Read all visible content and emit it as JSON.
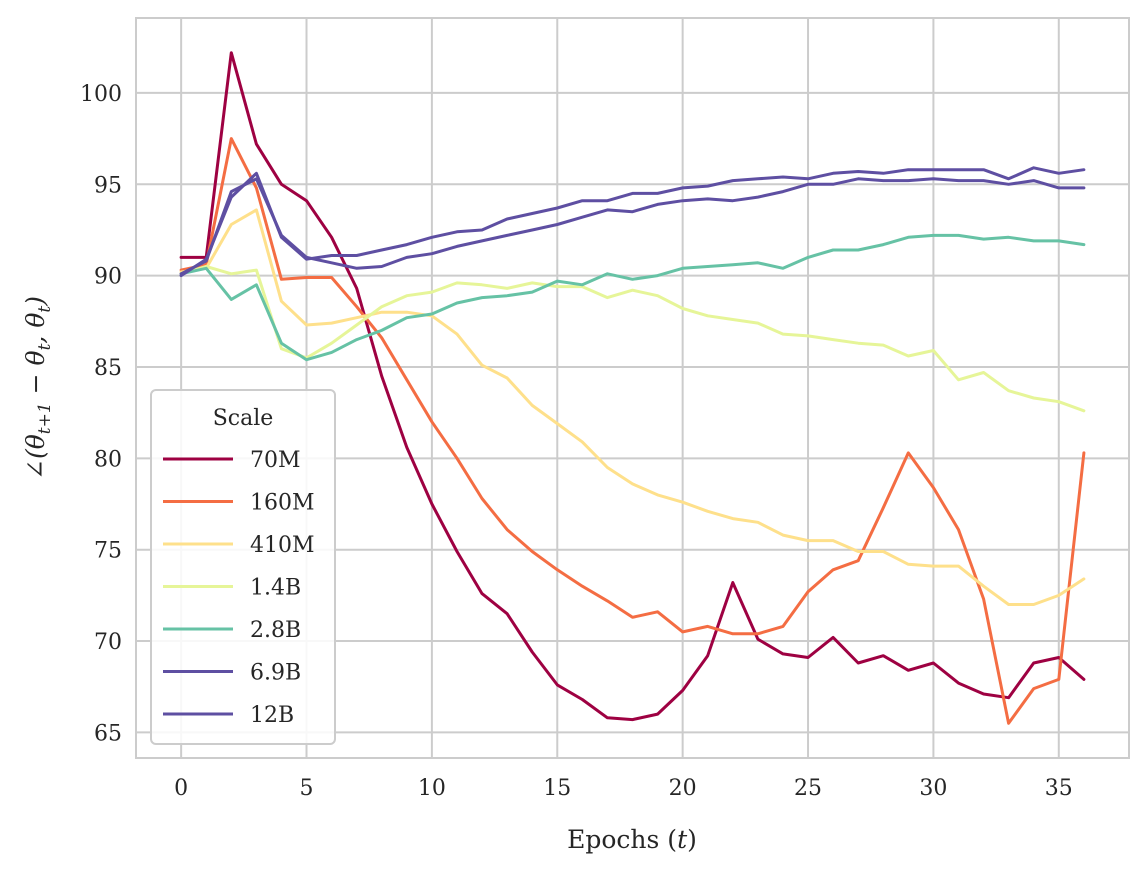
{
  "chart_data": {
    "type": "line",
    "xlabel": "Epochs (t)",
    "ylabel": "∠(θ_{t+1} − θ_t, θ_t)",
    "xlim": [
      -1.8,
      37.8
    ],
    "ylim": [
      63.6,
      104.1
    ],
    "xticks": [
      0,
      5,
      10,
      15,
      20,
      25,
      30,
      35
    ],
    "yticks": [
      65,
      70,
      75,
      80,
      85,
      90,
      95,
      100
    ],
    "grid": true,
    "legend": {
      "title": "Scale",
      "position": "lower-left"
    },
    "x": [
      0,
      1,
      2,
      3,
      4,
      5,
      6,
      7,
      8,
      9,
      10,
      11,
      12,
      13,
      14,
      15,
      16,
      17,
      18,
      19,
      20,
      21,
      22,
      23,
      24,
      25,
      26,
      27,
      28,
      29,
      30,
      31,
      32,
      33,
      34,
      35,
      36
    ],
    "series": [
      {
        "name": "70M",
        "color": "#9e0142",
        "values": [
          91.0,
          91.0,
          102.2,
          97.2,
          95.0,
          94.1,
          92.1,
          89.3,
          84.5,
          80.6,
          77.5,
          74.9,
          72.6,
          71.5,
          69.4,
          67.6,
          66.8,
          65.8,
          65.7,
          66.0,
          67.3,
          69.2,
          73.2,
          70.1,
          69.3,
          69.1,
          70.2,
          68.8,
          69.2,
          68.4,
          68.8,
          67.7,
          67.1,
          66.9,
          68.8,
          69.1,
          67.9
        ]
      },
      {
        "name": "160M",
        "color": "#f46d43",
        "values": [
          90.3,
          90.6,
          97.5,
          94.8,
          89.8,
          89.9,
          89.9,
          88.3,
          86.6,
          84.3,
          82.0,
          80.0,
          77.8,
          76.1,
          74.9,
          73.9,
          73.0,
          72.2,
          71.3,
          71.6,
          70.5,
          70.8,
          70.4,
          70.4,
          70.8,
          72.7,
          73.9,
          74.4,
          77.3,
          80.3,
          78.4,
          76.1,
          72.3,
          65.5,
          67.4,
          67.9,
          80.3
        ]
      },
      {
        "name": "410M",
        "color": "#fee08b",
        "values": [
          90.2,
          90.4,
          92.8,
          93.6,
          88.6,
          87.3,
          87.4,
          87.7,
          88.0,
          88.0,
          87.8,
          86.8,
          85.1,
          84.4,
          82.9,
          81.9,
          80.9,
          79.5,
          78.6,
          78.0,
          77.6,
          77.1,
          76.7,
          76.5,
          75.8,
          75.5,
          75.5,
          74.9,
          74.9,
          74.2,
          74.1,
          74.1,
          73.0,
          72.0,
          72.0,
          72.5,
          73.4
        ]
      },
      {
        "name": "1.4B",
        "color": "#e6f598",
        "values": [
          90.1,
          90.5,
          90.1,
          90.3,
          86.0,
          85.5,
          86.3,
          87.3,
          88.3,
          88.9,
          89.1,
          89.6,
          89.5,
          89.3,
          89.6,
          89.4,
          89.4,
          88.8,
          89.2,
          88.9,
          88.2,
          87.8,
          87.6,
          87.4,
          86.8,
          86.7,
          86.5,
          86.3,
          86.2,
          85.6,
          85.9,
          84.3,
          84.7,
          83.7,
          83.3,
          83.1,
          82.6
        ]
      },
      {
        "name": "2.8B",
        "color": "#66c2a5",
        "values": [
          90.1,
          90.4,
          88.7,
          89.5,
          86.3,
          85.4,
          85.8,
          86.5,
          87.0,
          87.7,
          87.9,
          88.5,
          88.8,
          88.9,
          89.1,
          89.7,
          89.5,
          90.1,
          89.8,
          90.0,
          90.4,
          90.5,
          90.6,
          90.7,
          90.4,
          91.0,
          91.4,
          91.4,
          91.7,
          92.1,
          92.2,
          92.2,
          92.0,
          92.1,
          91.9,
          91.9,
          91.7
        ]
      },
      {
        "name": "6.9B",
        "color": "#5e4fa2",
        "values": [
          90.0,
          90.9,
          94.3,
          95.6,
          92.1,
          90.9,
          91.1,
          91.1,
          91.4,
          91.7,
          92.1,
          92.4,
          92.5,
          93.1,
          93.4,
          93.7,
          94.1,
          94.1,
          94.5,
          94.5,
          94.8,
          94.9,
          95.2,
          95.3,
          95.4,
          95.3,
          95.6,
          95.7,
          95.6,
          95.8,
          95.8,
          95.8,
          95.8,
          95.3,
          95.9,
          95.6,
          95.8
        ]
      },
      {
        "name": "12B",
        "color": "#5e4fa2",
        "values": [
          90.1,
          90.8,
          94.6,
          95.3,
          92.2,
          91.0,
          90.7,
          90.4,
          90.5,
          91.0,
          91.2,
          91.6,
          91.9,
          92.2,
          92.5,
          92.8,
          93.2,
          93.6,
          93.5,
          93.9,
          94.1,
          94.2,
          94.1,
          94.3,
          94.6,
          95.0,
          95.0,
          95.3,
          95.2,
          95.2,
          95.3,
          95.2,
          95.2,
          95.0,
          95.2,
          94.8,
          94.8
        ]
      }
    ]
  }
}
